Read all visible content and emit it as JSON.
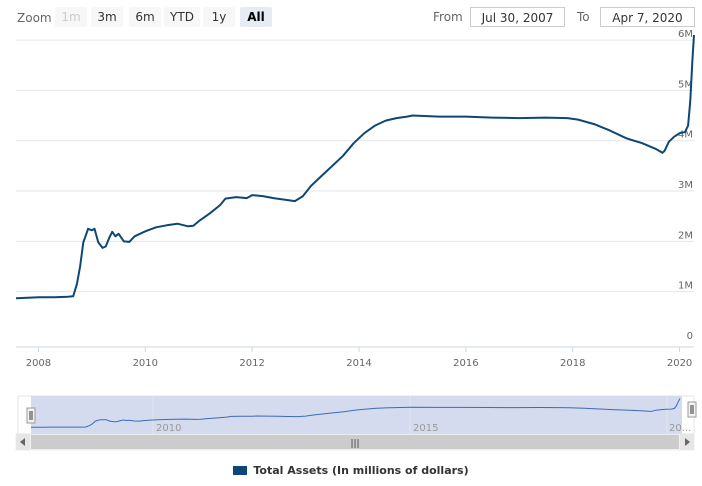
{
  "toolbar": {
    "zoom_label": "Zoom",
    "buttons": [
      "1m",
      "3m",
      "6m",
      "YTD",
      "1y",
      "All"
    ],
    "selected": "All",
    "disabled": [
      "1m"
    ],
    "from_label": "From",
    "from_value": "Jul 30, 2007",
    "to_label": "To",
    "to_value": "Apr 7, 2020"
  },
  "colors": {
    "line": "#0d4777",
    "navigator_fill": "#d4dbee",
    "navigator_line": "#3d6cb5",
    "grid": "#e6e6e6"
  },
  "legend": {
    "label": "Total Assets (In millions of dollars)"
  },
  "navigator": {
    "labels": [
      "2010",
      "2015",
      "20..."
    ],
    "scrollbar_grip": "|||"
  },
  "chart_data": {
    "type": "line",
    "title": "",
    "xlabel": "",
    "ylabel": "",
    "x_ticks": [
      "2008",
      "2010",
      "2012",
      "2014",
      "2016",
      "2018",
      "2020"
    ],
    "y_ticks": [
      "0",
      "1M",
      "2M",
      "3M",
      "4M",
      "5M",
      "6M"
    ],
    "xlim": [
      2007.58,
      2020.27
    ],
    "ylim": [
      0,
      6.2
    ],
    "grid": "horizontal",
    "legend_position": "bottom-center",
    "series": [
      {
        "name": "Total Assets (In millions of dollars)",
        "points": [
          [
            2007.58,
            0.87
          ],
          [
            2007.8,
            0.88
          ],
          [
            2008.0,
            0.89
          ],
          [
            2008.3,
            0.89
          ],
          [
            2008.55,
            0.9
          ],
          [
            2008.65,
            0.91
          ],
          [
            2008.72,
            1.15
          ],
          [
            2008.78,
            1.5
          ],
          [
            2008.84,
            1.98
          ],
          [
            2008.88,
            2.1
          ],
          [
            2008.93,
            2.25
          ],
          [
            2009.0,
            2.22
          ],
          [
            2009.05,
            2.25
          ],
          [
            2009.12,
            1.98
          ],
          [
            2009.2,
            1.87
          ],
          [
            2009.26,
            1.9
          ],
          [
            2009.33,
            2.08
          ],
          [
            2009.38,
            2.19
          ],
          [
            2009.44,
            2.1
          ],
          [
            2009.5,
            2.15
          ],
          [
            2009.6,
            2.0
          ],
          [
            2009.7,
            1.99
          ],
          [
            2009.8,
            2.1
          ],
          [
            2010.0,
            2.2
          ],
          [
            2010.2,
            2.28
          ],
          [
            2010.4,
            2.32
          ],
          [
            2010.6,
            2.35
          ],
          [
            2010.8,
            2.3
          ],
          [
            2010.9,
            2.31
          ],
          [
            2011.0,
            2.4
          ],
          [
            2011.2,
            2.55
          ],
          [
            2011.4,
            2.72
          ],
          [
            2011.5,
            2.85
          ],
          [
            2011.7,
            2.88
          ],
          [
            2011.9,
            2.86
          ],
          [
            2012.0,
            2.92
          ],
          [
            2012.2,
            2.9
          ],
          [
            2012.4,
            2.86
          ],
          [
            2012.6,
            2.83
          ],
          [
            2012.8,
            2.8
          ],
          [
            2012.95,
            2.9
          ],
          [
            2013.1,
            3.1
          ],
          [
            2013.3,
            3.3
          ],
          [
            2013.5,
            3.5
          ],
          [
            2013.7,
            3.7
          ],
          [
            2013.9,
            3.95
          ],
          [
            2014.1,
            4.15
          ],
          [
            2014.3,
            4.3
          ],
          [
            2014.5,
            4.4
          ],
          [
            2014.7,
            4.45
          ],
          [
            2014.9,
            4.48
          ],
          [
            2015.0,
            4.5
          ],
          [
            2015.5,
            4.48
          ],
          [
            2016.0,
            4.48
          ],
          [
            2016.5,
            4.46
          ],
          [
            2017.0,
            4.45
          ],
          [
            2017.5,
            4.46
          ],
          [
            2017.9,
            4.45
          ],
          [
            2018.1,
            4.42
          ],
          [
            2018.4,
            4.33
          ],
          [
            2018.7,
            4.2
          ],
          [
            2019.0,
            4.05
          ],
          [
            2019.3,
            3.95
          ],
          [
            2019.55,
            3.84
          ],
          [
            2019.68,
            3.76
          ],
          [
            2019.72,
            3.8
          ],
          [
            2019.8,
            3.98
          ],
          [
            2019.9,
            4.08
          ],
          [
            2020.0,
            4.15
          ],
          [
            2020.1,
            4.17
          ],
          [
            2020.16,
            4.3
          ],
          [
            2020.2,
            4.8
          ],
          [
            2020.24,
            5.6
          ],
          [
            2020.27,
            6.1
          ]
        ]
      }
    ]
  }
}
